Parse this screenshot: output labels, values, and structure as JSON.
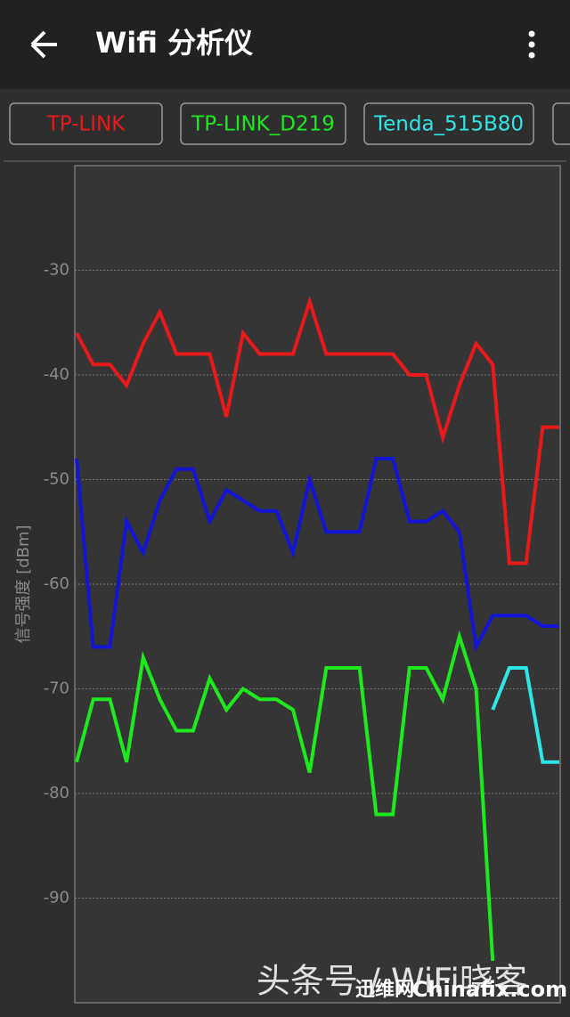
{
  "app_bar": {
    "title": "Wifi 分析仪"
  },
  "watermark": {
    "text": "头条号 / WiFi晓客",
    "site_name": "迅维网",
    "site_url": "Chinafix.com"
  },
  "chart_data": {
    "type": "line",
    "y_label": "信号强度 [dBm]",
    "categories": [
      null,
      null,
      null,
      null,
      null,
      null,
      null,
      null,
      null,
      null,
      null,
      null,
      null,
      null,
      null,
      null,
      null,
      null,
      null,
      null,
      null,
      null,
      null,
      null,
      null,
      null,
      null,
      null,
      null,
      null
    ],
    "ylim": [
      -100,
      -20
    ],
    "yticks": [
      -90,
      -80,
      -70,
      -60,
      -50,
      -40,
      -30
    ],
    "grid": true,
    "series": [
      {
        "name": "TP-LINK",
        "color": "#e8191b",
        "values": [
          -36,
          -39,
          -39,
          -41,
          -37,
          -34,
          -38,
          -38,
          -38,
          -44,
          -36,
          -38,
          -38,
          -38,
          -33,
          -38,
          -38,
          -38,
          -38,
          -38,
          -40,
          -40,
          -46,
          -41,
          -37,
          -39,
          -58,
          -58,
          -45,
          -45
        ]
      },
      {
        "name": "TP-LINK_D219",
        "color": "#1ee81e",
        "values": [
          -77,
          -71,
          -71,
          -77,
          -67,
          -71,
          -74,
          -74,
          -69,
          -72,
          -70,
          -71,
          -71,
          -72,
          -78,
          -68,
          -68,
          -68,
          -82,
          -82,
          -68,
          -68,
          -71,
          -65,
          -70,
          -96,
          null,
          null,
          null,
          null
        ]
      },
      {
        "name": "Tenda_515B80",
        "color": "#2ee6e6",
        "values": [
          null,
          null,
          null,
          null,
          null,
          null,
          null,
          null,
          null,
          null,
          null,
          null,
          null,
          null,
          null,
          null,
          null,
          null,
          null,
          null,
          null,
          null,
          null,
          null,
          null,
          -72,
          -68,
          -68,
          -77,
          -77
        ]
      },
      {
        "name": "",
        "color": "#1515d6",
        "values": [
          -48,
          -66,
          -66,
          -54,
          -57,
          -52,
          -49,
          -49,
          -54,
          -51,
          -52,
          -53,
          -53,
          -57,
          -50,
          -55,
          -55,
          -55,
          -48,
          -48,
          -54,
          -54,
          -53,
          -55,
          -66,
          -63,
          -63,
          -63,
          -64,
          -64
        ]
      }
    ]
  }
}
